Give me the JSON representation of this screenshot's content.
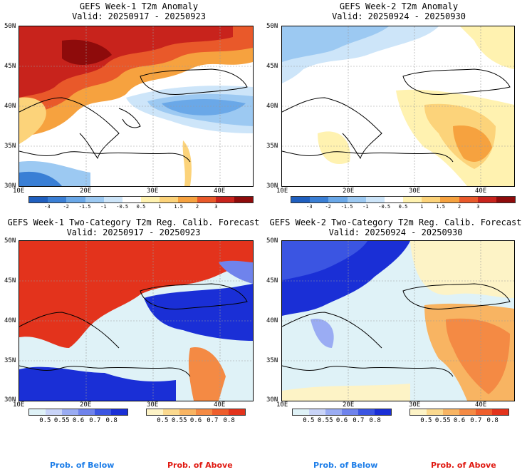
{
  "panels": [
    {
      "title": "GEFS Week-1 T2m Anomaly",
      "valid": "Valid: 20250917 - 20250923"
    },
    {
      "title": "GEFS Week-2 T2m Anomaly",
      "valid": "Valid: 20250924 - 20250930"
    },
    {
      "title": "GEFS Week-1 Two-Category T2m Reg. Calib. Forecast",
      "valid": "Valid: 20250917 - 20250923"
    },
    {
      "title": "GEFS Week-2 Two-Category T2m Reg. Calib. Forecast",
      "valid": "Valid: 20250924 - 20250930"
    }
  ],
  "lat_labels": [
    "50N",
    "45N",
    "40N",
    "35N",
    "30N"
  ],
  "lon_labels": [
    "10E",
    "20E",
    "30E",
    "40E"
  ],
  "anomaly_scale": {
    "labels": [
      "-3",
      "-2",
      "-1.5",
      "-1",
      "-0.5",
      "0.5",
      "1",
      "1.5",
      "2",
      "3"
    ],
    "colors": [
      "#1f5fbf",
      "#3a7fd5",
      "#6aa8e8",
      "#9cc9f2",
      "#cde5f9",
      "#ffffff",
      "#fff2b0",
      "#fcd37a",
      "#f6a23f",
      "#e9592a",
      "#c8231c",
      "#8e0b0b"
    ]
  },
  "prob_below_scale": {
    "labels": [
      "0.5",
      "0.55",
      "0.6",
      "0.7",
      "0.8"
    ],
    "colors": [
      "#dff2f7",
      "#c9d4f8",
      "#9aacf3",
      "#6f83ec",
      "#3b55e2",
      "#1a2fd6"
    ]
  },
  "prob_above_scale": {
    "labels": [
      "0.5",
      "0.55",
      "0.6",
      "0.7",
      "0.8"
    ],
    "colors": [
      "#fdf3c6",
      "#fbd98e",
      "#f8b462",
      "#f48a44",
      "#ee5e2c",
      "#e3331c"
    ]
  },
  "legend": {
    "below": "Prob. of Below",
    "above": "Prob. of Above",
    "below_color": "#1e7ee8",
    "above_color": "#e01a12"
  }
}
